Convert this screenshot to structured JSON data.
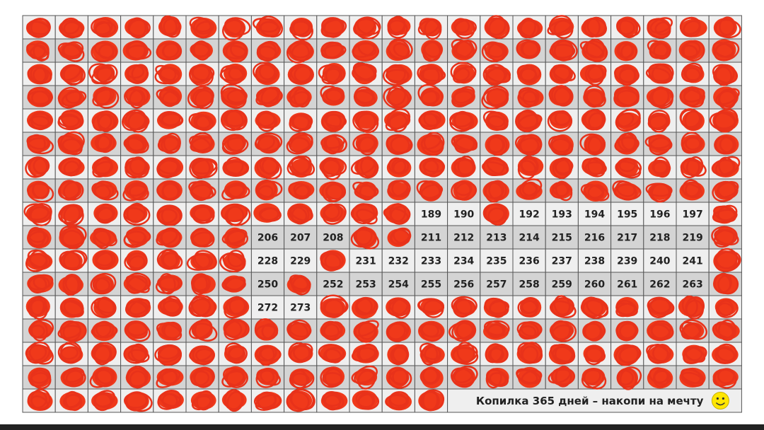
{
  "grid": {
    "rows": [
      [
        null,
        null,
        null,
        null,
        null,
        null,
        null,
        null,
        null,
        null,
        null,
        null,
        null,
        null,
        null,
        null,
        null,
        null,
        null,
        null,
        null,
        null
      ],
      [
        null,
        null,
        null,
        null,
        null,
        null,
        null,
        null,
        null,
        null,
        null,
        null,
        null,
        null,
        null,
        null,
        null,
        null,
        null,
        null,
        null,
        null
      ],
      [
        null,
        null,
        null,
        null,
        null,
        null,
        null,
        null,
        null,
        null,
        null,
        null,
        null,
        null,
        null,
        null,
        null,
        null,
        null,
        null,
        null,
        null
      ],
      [
        null,
        null,
        null,
        null,
        null,
        null,
        null,
        null,
        null,
        null,
        null,
        null,
        null,
        null,
        null,
        null,
        null,
        null,
        null,
        null,
        null,
        null
      ],
      [
        null,
        null,
        null,
        null,
        null,
        null,
        null,
        null,
        null,
        null,
        null,
        null,
        null,
        null,
        null,
        null,
        null,
        null,
        null,
        null,
        null,
        null
      ],
      [
        null,
        null,
        null,
        null,
        null,
        null,
        null,
        null,
        null,
        null,
        null,
        null,
        null,
        null,
        null,
        null,
        null,
        null,
        null,
        null,
        null,
        null
      ],
      [
        null,
        null,
        null,
        null,
        null,
        null,
        null,
        null,
        null,
        null,
        null,
        null,
        null,
        null,
        null,
        null,
        null,
        null,
        null,
        null,
        null,
        null
      ],
      [
        null,
        null,
        null,
        null,
        null,
        null,
        null,
        null,
        null,
        null,
        null,
        null,
        null,
        null,
        null,
        null,
        null,
        null,
        null,
        null,
        null,
        null
      ],
      [
        null,
        null,
        null,
        null,
        null,
        null,
        null,
        null,
        null,
        null,
        null,
        null,
        189,
        190,
        null,
        192,
        193,
        194,
        195,
        196,
        197,
        null
      ],
      [
        null,
        null,
        null,
        null,
        null,
        null,
        null,
        206,
        207,
        208,
        null,
        null,
        211,
        212,
        213,
        214,
        215,
        216,
        217,
        218,
        219,
        null
      ],
      [
        null,
        null,
        null,
        null,
        null,
        null,
        null,
        228,
        229,
        null,
        231,
        232,
        233,
        234,
        235,
        236,
        237,
        238,
        239,
        240,
        241,
        null
      ],
      [
        null,
        null,
        null,
        null,
        null,
        null,
        null,
        250,
        null,
        252,
        253,
        254,
        255,
        256,
        257,
        258,
        259,
        260,
        261,
        262,
        263,
        null
      ],
      [
        null,
        null,
        null,
        null,
        null,
        null,
        null,
        272,
        273,
        null,
        null,
        null,
        null,
        null,
        null,
        null,
        null,
        null,
        null,
        null,
        null,
        null
      ],
      [
        null,
        null,
        null,
        null,
        null,
        null,
        null,
        null,
        null,
        null,
        null,
        null,
        null,
        null,
        null,
        null,
        null,
        null,
        null,
        null,
        null,
        null
      ],
      [
        null,
        null,
        null,
        null,
        null,
        null,
        null,
        null,
        null,
        null,
        null,
        null,
        null,
        null,
        null,
        null,
        null,
        null,
        null,
        null,
        null,
        null
      ],
      [
        null,
        null,
        null,
        null,
        null,
        null,
        null,
        null,
        null,
        null,
        null,
        null,
        null,
        null,
        null,
        null,
        null,
        null,
        null,
        null,
        null,
        null
      ],
      [
        null,
        null,
        null,
        null,
        null,
        null,
        null,
        null,
        null,
        null,
        null,
        null,
        null
      ]
    ]
  },
  "caption": "Копилка 365 дней – накопи на мечту"
}
